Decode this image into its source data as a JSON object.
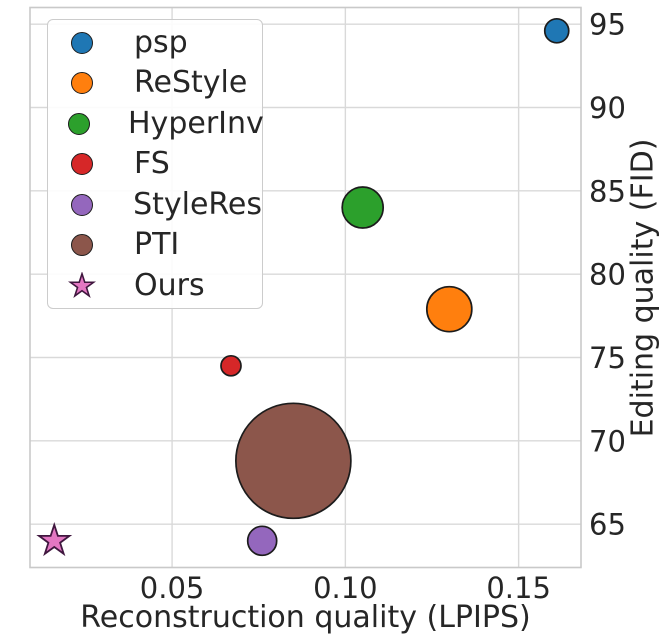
{
  "figure": {
    "background": "#ffffff",
    "text_color": "#262626",
    "grid_color": "#d9d9d9",
    "spine_color": "#c9c9c9",
    "marker_edge_color": "#1c1c1c"
  },
  "chart_data": {
    "type": "scatter",
    "title": "",
    "xlabel": "Reconstruction quality (LPIPS)",
    "ylabel": "Editing quality (FID)",
    "xlim": [
      0.009,
      0.168
    ],
    "ylim": [
      62.4,
      96.0
    ],
    "xtick_values": [
      0.05,
      0.1,
      0.15
    ],
    "xtick_labels": [
      "0.05",
      "0.10",
      "0.15"
    ],
    "ytick_values": [
      65,
      70,
      75,
      80,
      85,
      90,
      95
    ],
    "ytick_labels": [
      "65",
      "70",
      "75",
      "80",
      "85",
      "90",
      "95"
    ],
    "ytick_side": "right",
    "grid": true,
    "legend_position": "upper-left",
    "series": [
      {
        "name": "psp",
        "marker": "circle",
        "color": "#1f77b4",
        "edge_color": "#1c1c1c",
        "x": 0.161,
        "y": 94.6,
        "radius_px": 12
      },
      {
        "name": "ReStyle",
        "marker": "circle",
        "color": "#ff7f0e",
        "edge_color": "#1c1c1c",
        "x": 0.13,
        "y": 77.9,
        "radius_px": 22.5
      },
      {
        "name": "HyperInv",
        "marker": "circle",
        "color": "#2ca02c",
        "edge_color": "#1c1c1c",
        "x": 0.105,
        "y": 84.0,
        "radius_px": 20.5
      },
      {
        "name": "FS",
        "marker": "circle",
        "color": "#d62728",
        "edge_color": "#1c1c1c",
        "x": 0.067,
        "y": 74.5,
        "radius_px": 10
      },
      {
        "name": "StyleRes",
        "marker": "circle",
        "color": "#9467bd",
        "edge_color": "#1c1c1c",
        "x": 0.076,
        "y": 64.0,
        "radius_px": 14.5
      },
      {
        "name": "PTI",
        "marker": "circle",
        "color": "#8c564b",
        "edge_color": "#1c1c1c",
        "x": 0.085,
        "y": 68.8,
        "radius_px": 57.5
      },
      {
        "name": "Ours",
        "marker": "star",
        "color": "#e377c2",
        "edge_color": "#40173f",
        "x": 0.016,
        "y": 64.0,
        "radius_px": 16
      }
    ]
  }
}
